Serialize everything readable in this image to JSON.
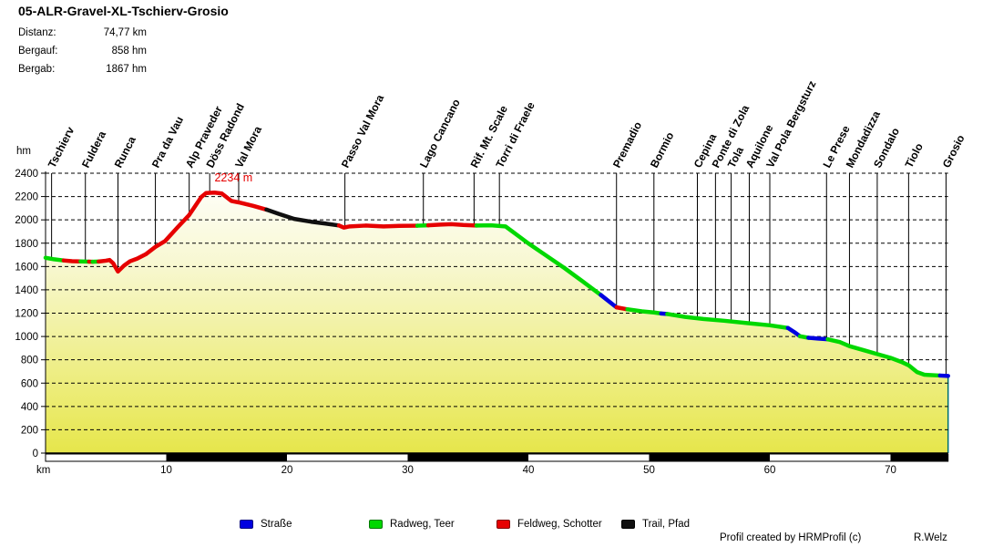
{
  "title": "05-ALR-Gravel-XL-Tschierv-Grosio",
  "stats": [
    {
      "label": "Distanz:",
      "value": "74,77 km"
    },
    {
      "label": "Bergauf:",
      "value": "858 hm"
    },
    {
      "label": "Bergab:",
      "value": "1867 hm"
    }
  ],
  "legend": {
    "items": [
      {
        "label": "Straße",
        "color": "#0000e0",
        "border": "#000080"
      },
      {
        "label": "Radweg, Teer",
        "color": "#00d800",
        "border": "#007800"
      },
      {
        "label": "Feldweg, Schotter",
        "color": "#e60000",
        "border": "#800000"
      },
      {
        "label": "Trail, Pfad",
        "color": "#101010",
        "border": "#000000"
      }
    ]
  },
  "footer": {
    "credit": "Profil created by HRMProfil (c)",
    "author": "R.Welz"
  },
  "chart_data": {
    "type": "area",
    "title": "05-ALR-Gravel-XL-Tschierv-Grosio",
    "xlabel": "km",
    "ylabel": "hm",
    "xlim": [
      0,
      74.77
    ],
    "ylim": [
      0,
      2400
    ],
    "x_ticks": [
      10,
      20,
      30,
      40,
      50,
      60,
      70
    ],
    "y_tick_step": 200,
    "grid": "dashed-horizontal",
    "axis_bar_black_km": [
      [
        10,
        20
      ],
      [
        30,
        40
      ],
      [
        50,
        60
      ],
      [
        70,
        74.77
      ]
    ],
    "fill_gradient": {
      "top": "#ffffff",
      "mid": "#f8f8d2",
      "bottom": "#e6e64b"
    },
    "right_edge_color": "#007070",
    "peak_annotation": {
      "text": "2234 m",
      "km": 14.0,
      "hm": 2330
    },
    "surface_colors": {
      "strasse": "#0000e0",
      "radweg": "#00d800",
      "feldweg": "#e60000",
      "trail": "#101010"
    },
    "markers": [
      {
        "name": "Tschierv",
        "km": 0.5
      },
      {
        "name": "Fuldera",
        "km": 3.3
      },
      {
        "name": "Runca",
        "km": 6.0
      },
      {
        "name": "Pra da Vau",
        "km": 9.1
      },
      {
        "name": "Alp Praveder",
        "km": 11.9
      },
      {
        "name": "Döss Radond",
        "km": 13.6
      },
      {
        "name": "Val Mora",
        "km": 16.0
      },
      {
        "name": "Passo Val Mora",
        "km": 24.8
      },
      {
        "name": "Lago Cancano",
        "km": 31.3
      },
      {
        "name": "Rif. Mt. Scale",
        "km": 35.5
      },
      {
        "name": "Torri di Fraele",
        "km": 37.6
      },
      {
        "name": "Premadio",
        "km": 47.3
      },
      {
        "name": "Bormio",
        "km": 50.4
      },
      {
        "name": "Cepina",
        "km": 54.0
      },
      {
        "name": "Ponte di Zola",
        "km": 55.5
      },
      {
        "name": "Tola",
        "km": 56.8
      },
      {
        "name": "Aquilone",
        "km": 58.3
      },
      {
        "name": "Val Pola Bergsturz",
        "km": 60.0
      },
      {
        "name": "Le Prese",
        "km": 64.7
      },
      {
        "name": "Mondadizza",
        "km": 66.6
      },
      {
        "name": "Sondalo",
        "km": 68.9
      },
      {
        "name": "Tiolo",
        "km": 71.5
      },
      {
        "name": "Grosio",
        "km": 74.6
      }
    ],
    "segments": [
      {
        "surface": "radweg",
        "points": [
          [
            0,
            1675
          ],
          [
            0.7,
            1662
          ],
          [
            1.5,
            1652
          ]
        ]
      },
      {
        "surface": "feldweg",
        "points": [
          [
            1.5,
            1652
          ],
          [
            2.2,
            1646
          ],
          [
            2.9,
            1644
          ]
        ]
      },
      {
        "surface": "radweg",
        "points": [
          [
            2.9,
            1644
          ],
          [
            3.6,
            1642
          ]
        ]
      },
      {
        "surface": "feldweg",
        "points": [
          [
            3.6,
            1642
          ],
          [
            3.9,
            1641
          ]
        ]
      },
      {
        "surface": "radweg",
        "points": [
          [
            3.9,
            1641
          ],
          [
            4.4,
            1643
          ]
        ]
      },
      {
        "surface": "feldweg",
        "points": [
          [
            4.4,
            1643
          ],
          [
            5.0,
            1650
          ],
          [
            5.3,
            1656
          ],
          [
            5.6,
            1628
          ],
          [
            6.0,
            1557
          ],
          [
            6.5,
            1608
          ],
          [
            7.0,
            1645
          ],
          [
            7.6,
            1668
          ],
          [
            8.3,
            1705
          ],
          [
            9.1,
            1768
          ],
          [
            9.9,
            1818
          ],
          [
            10.9,
            1932
          ],
          [
            11.9,
            2042
          ],
          [
            12.9,
            2196
          ],
          [
            13.3,
            2230
          ],
          [
            14.0,
            2234
          ],
          [
            14.6,
            2226
          ],
          [
            15.4,
            2162
          ],
          [
            16.0,
            2150
          ],
          [
            17.2,
            2120
          ],
          [
            18.3,
            2088
          ]
        ]
      },
      {
        "surface": "trail",
        "points": [
          [
            18.3,
            2088
          ],
          [
            19.3,
            2052
          ],
          [
            20.6,
            2008
          ],
          [
            22.0,
            1984
          ],
          [
            23.2,
            1968
          ],
          [
            24.3,
            1952
          ]
        ]
      },
      {
        "surface": "feldweg",
        "points": [
          [
            24.3,
            1952
          ],
          [
            24.7,
            1934
          ],
          [
            25.2,
            1944
          ],
          [
            26.5,
            1951
          ],
          [
            28.0,
            1944
          ],
          [
            29.3,
            1949
          ],
          [
            30.8,
            1950
          ]
        ]
      },
      {
        "surface": "radweg",
        "points": [
          [
            30.8,
            1950
          ],
          [
            31.7,
            1953
          ]
        ]
      },
      {
        "surface": "feldweg",
        "points": [
          [
            31.7,
            1953
          ],
          [
            32.7,
            1959
          ],
          [
            33.6,
            1963
          ],
          [
            34.6,
            1956
          ],
          [
            35.7,
            1951
          ]
        ]
      },
      {
        "surface": "radweg",
        "points": [
          [
            35.7,
            1951
          ],
          [
            36.9,
            1953
          ],
          [
            38.1,
            1944
          ],
          [
            38.7,
            1898
          ],
          [
            40.0,
            1798
          ],
          [
            41.5,
            1692
          ],
          [
            43.0,
            1586
          ],
          [
            44.5,
            1472
          ],
          [
            46.0,
            1356
          ]
        ]
      },
      {
        "surface": "strasse",
        "points": [
          [
            46.0,
            1356
          ],
          [
            47.3,
            1250
          ]
        ]
      },
      {
        "surface": "feldweg",
        "points": [
          [
            47.3,
            1250
          ],
          [
            48.2,
            1233
          ]
        ]
      },
      {
        "surface": "radweg",
        "points": [
          [
            48.2,
            1233
          ],
          [
            49.4,
            1216
          ],
          [
            50.4,
            1206
          ],
          [
            51.0,
            1197
          ]
        ]
      },
      {
        "surface": "strasse",
        "points": [
          [
            51.0,
            1197
          ],
          [
            51.5,
            1193
          ]
        ]
      },
      {
        "surface": "radweg",
        "points": [
          [
            51.5,
            1193
          ],
          [
            53.0,
            1168
          ],
          [
            54.5,
            1150
          ],
          [
            56.2,
            1135
          ],
          [
            58.3,
            1113
          ],
          [
            60.0,
            1096
          ],
          [
            61.5,
            1073
          ]
        ]
      },
      {
        "surface": "strasse",
        "points": [
          [
            61.5,
            1073
          ],
          [
            62.0,
            1040
          ],
          [
            62.5,
            1002
          ]
        ]
      },
      {
        "surface": "radweg",
        "points": [
          [
            62.5,
            1002
          ],
          [
            63.2,
            989
          ]
        ]
      },
      {
        "surface": "strasse",
        "points": [
          [
            63.2,
            989
          ],
          [
            64.0,
            982
          ],
          [
            64.8,
            976
          ]
        ]
      },
      {
        "surface": "radweg",
        "points": [
          [
            64.8,
            976
          ],
          [
            65.8,
            952
          ],
          [
            66.6,
            917
          ],
          [
            67.8,
            882
          ],
          [
            68.9,
            849
          ],
          [
            70.0,
            817
          ],
          [
            70.9,
            782
          ],
          [
            71.5,
            753
          ],
          [
            72.2,
            695
          ],
          [
            72.8,
            672
          ],
          [
            74.1,
            665
          ]
        ]
      },
      {
        "surface": "strasse",
        "points": [
          [
            74.1,
            665
          ],
          [
            74.77,
            662
          ]
        ]
      }
    ]
  }
}
